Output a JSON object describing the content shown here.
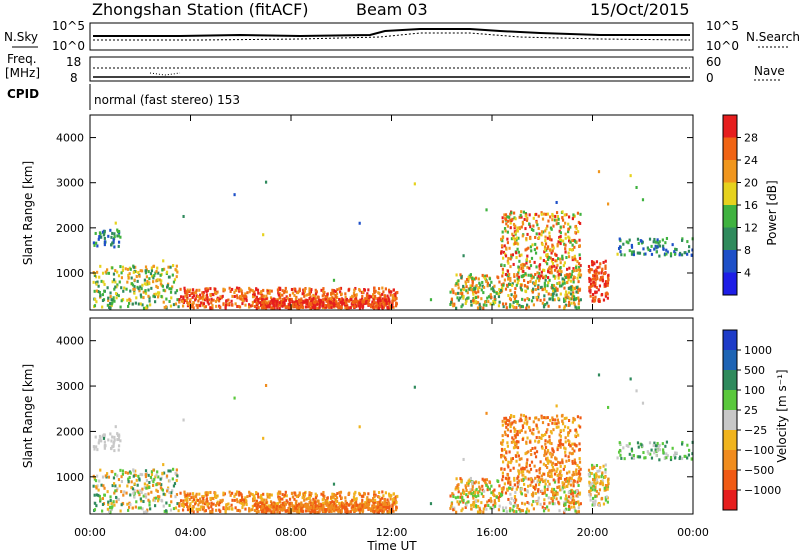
{
  "header": {
    "station": "Zhongshan Station (fitACF)",
    "beam": "Beam 03",
    "date": "15/Oct/2015"
  },
  "top_panels": {
    "nsky_label": "N.Sky",
    "nsky_ticks": [
      "10^5",
      "10^0"
    ],
    "nsearch_label": "N.Search",
    "nsearch_ticks": [
      "10^5",
      "10^0"
    ],
    "freq_label_1": "Freq.",
    "freq_label_2": "[MHz]",
    "freq_ticks": [
      "18",
      "8"
    ],
    "nave_label": "Nave",
    "nave_ticks": [
      "60",
      "0"
    ],
    "cpid_label": "CPID",
    "cpid_text": "normal (fast stereo) 153"
  },
  "colors": {
    "power_scale": [
      "#1e1ee6",
      "#1e50c8",
      "#2f8a5c",
      "#3fb23f",
      "#e6d21e",
      "#f0961e",
      "#f06414",
      "#e61e1e"
    ],
    "velocity_scale": [
      "#e61e1e",
      "#f05a14",
      "#f08c1e",
      "#f0b41e",
      "#c8c8c8",
      "#5ac83c",
      "#2f8a5c",
      "#1e64b4",
      "#1e3cc8"
    ]
  },
  "chart_data": [
    {
      "type": "heatmap",
      "name": "power",
      "ylabel": "Slant Range [km]",
      "ylim": [
        180,
        4500
      ],
      "yticks": [
        "4000",
        "3000",
        "2000",
        "1000"
      ],
      "xlim": [
        "00:00",
        "24:00"
      ],
      "colorbar_label": "Power [dB]",
      "colorbar_ticks": [
        "28",
        "24",
        "20",
        "16",
        "12",
        "8",
        "4"
      ],
      "clim": [
        0,
        32
      ]
    },
    {
      "type": "heatmap",
      "name": "velocity",
      "ylabel": "Slant Range [km]",
      "ylim": [
        180,
        4500
      ],
      "yticks": [
        "4000",
        "3000",
        "2000",
        "1000"
      ],
      "xlim": [
        "00:00",
        "24:00"
      ],
      "colorbar_label": "Velocity [m s⁻¹]",
      "colorbar_ticks": [
        "1000",
        "500",
        "100",
        "25",
        "−25",
        "−100",
        "−500",
        "−1000"
      ]
    }
  ],
  "x_axis": {
    "ticks": [
      "00:00",
      "04:00",
      "08:00",
      "12:00",
      "16:00",
      "20:00",
      "00:00"
    ],
    "label": "Time UT"
  }
}
